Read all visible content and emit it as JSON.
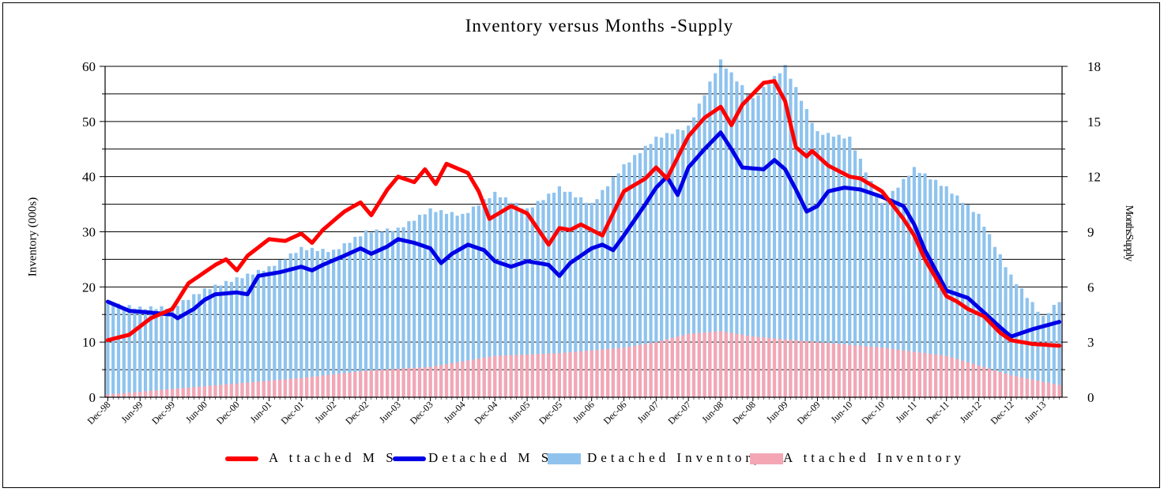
{
  "chart_data": {
    "type": "bar+line",
    "title": "Inventory versus Months -Supply",
    "ylabel_left": "Inventory (000s)",
    "ylabel_right": "MonthsSupply",
    "ylim_left": [
      0,
      60
    ],
    "ylim_right": [
      0,
      18
    ],
    "yticks_left": [
      "0",
      "10",
      "20",
      "30",
      "40",
      "50",
      "60"
    ],
    "yticks_right": [
      "0",
      "3",
      "6",
      "9",
      "12",
      "15",
      "18"
    ],
    "x_tick_labels": [
      "Dec-98",
      "Jun-99",
      "Dec-99",
      "Jun-00",
      "Dec-00",
      "Jun-01",
      "Dec-01",
      "Jun-02",
      "Dec-02",
      "Jun-03",
      "Dec-03",
      "Jun-04",
      "Dec-04",
      "Jun-05",
      "Dec-05",
      "Jun-06",
      "Dec-06",
      "Jun-07",
      "Dec-07",
      "Jun-08",
      "Dec-08",
      "Jun-09",
      "Dec-09",
      "Jun-10",
      "Dec-10",
      "Jun-11",
      "Dec-11",
      "Jun-12",
      "Dec-12",
      "Jun-13"
    ],
    "months_count": 178,
    "series": [
      {
        "name": "Detached Inventory",
        "axis": "left",
        "kind": "bar",
        "color": "#8fc3ee",
        "anchors": [
          [
            0,
            17
          ],
          [
            6,
            16.2
          ],
          [
            12,
            16.3
          ],
          [
            18,
            19.5
          ],
          [
            24,
            21.5
          ],
          [
            30,
            23.5
          ],
          [
            36,
            27
          ],
          [
            42,
            26.5
          ],
          [
            48,
            30
          ],
          [
            54,
            30.5
          ],
          [
            60,
            34
          ],
          [
            66,
            33
          ],
          [
            72,
            37
          ],
          [
            78,
            34
          ],
          [
            84,
            38
          ],
          [
            90,
            35
          ],
          [
            96,
            42
          ],
          [
            102,
            47
          ],
          [
            108,
            49
          ],
          [
            114,
            61
          ],
          [
            120,
            54
          ],
          [
            126,
            60
          ],
          [
            132,
            48
          ],
          [
            138,
            47
          ],
          [
            144,
            35
          ],
          [
            150,
            41.5
          ],
          [
            156,
            38
          ],
          [
            162,
            33
          ],
          [
            168,
            22
          ],
          [
            174,
            14.5
          ],
          [
            177,
            17.5
          ]
        ]
      },
      {
        "name": "Attached Inventory",
        "axis": "left",
        "kind": "bar",
        "color": "#f4a6b4",
        "anchors": [
          [
            0,
            0.5
          ],
          [
            12,
            1.5
          ],
          [
            24,
            2.5
          ],
          [
            36,
            3.5
          ],
          [
            48,
            4.8
          ],
          [
            60,
            5.5
          ],
          [
            72,
            7.5
          ],
          [
            84,
            8
          ],
          [
            96,
            9
          ],
          [
            102,
            10
          ],
          [
            108,
            11.5
          ],
          [
            114,
            12
          ],
          [
            120,
            11
          ],
          [
            132,
            10
          ],
          [
            144,
            9
          ],
          [
            156,
            7.5
          ],
          [
            168,
            4
          ],
          [
            177,
            2.2
          ]
        ]
      },
      {
        "name": "Attached MS",
        "axis": "right",
        "kind": "line",
        "color": "#ff0000",
        "anchors": [
          [
            0,
            3.1
          ],
          [
            4,
            3.4
          ],
          [
            8,
            4.3
          ],
          [
            12,
            4.8
          ],
          [
            15,
            6.2
          ],
          [
            18,
            6.8
          ],
          [
            20,
            7.2
          ],
          [
            22,
            7.5
          ],
          [
            24,
            6.9
          ],
          [
            26,
            7.7
          ],
          [
            30,
            8.6
          ],
          [
            33,
            8.5
          ],
          [
            36,
            8.9
          ],
          [
            38,
            8.4
          ],
          [
            40,
            9.1
          ],
          [
            44,
            10.1
          ],
          [
            47,
            10.6
          ],
          [
            49,
            9.9
          ],
          [
            52,
            11.3
          ],
          [
            54,
            12
          ],
          [
            57,
            11.7
          ],
          [
            59,
            12.4
          ],
          [
            61,
            11.6
          ],
          [
            63,
            12.7
          ],
          [
            67,
            12.2
          ],
          [
            69,
            11.2
          ],
          [
            71,
            9.7
          ],
          [
            75,
            10.4
          ],
          [
            78,
            10
          ],
          [
            82,
            8.3
          ],
          [
            84,
            9.2
          ],
          [
            86,
            9.1
          ],
          [
            88,
            9.4
          ],
          [
            90,
            9.1
          ],
          [
            92,
            8.8
          ],
          [
            96,
            11.2
          ],
          [
            100,
            11.9
          ],
          [
            102,
            12.5
          ],
          [
            104,
            11.9
          ],
          [
            108,
            14.2
          ],
          [
            111,
            15.2
          ],
          [
            114,
            15.8
          ],
          [
            116,
            14.8
          ],
          [
            118,
            15.9
          ],
          [
            122,
            17.1
          ],
          [
            124,
            17.2
          ],
          [
            126,
            16.1
          ],
          [
            128,
            13.6
          ],
          [
            130,
            13.1
          ],
          [
            131,
            13.4
          ],
          [
            134,
            12.6
          ],
          [
            138,
            12
          ],
          [
            140,
            11.9
          ],
          [
            144,
            11.2
          ],
          [
            148,
            9.7
          ],
          [
            150,
            8.8
          ],
          [
            152,
            7.5
          ],
          [
            156,
            5.5
          ],
          [
            158,
            5.2
          ],
          [
            160,
            4.8
          ],
          [
            163,
            4.4
          ],
          [
            166,
            3.5
          ],
          [
            168,
            3.1
          ],
          [
            172,
            2.9
          ],
          [
            177,
            2.8
          ]
        ]
      },
      {
        "name": "Detached MS",
        "axis": "right",
        "kind": "line",
        "color": "#0000e6",
        "anchors": [
          [
            0,
            5.2
          ],
          [
            4,
            4.7
          ],
          [
            8,
            4.6
          ],
          [
            12,
            4.5
          ],
          [
            13,
            4.3
          ],
          [
            16,
            4.8
          ],
          [
            18,
            5.3
          ],
          [
            20,
            5.6
          ],
          [
            24,
            5.7
          ],
          [
            26,
            5.6
          ],
          [
            28,
            6.6
          ],
          [
            32,
            6.8
          ],
          [
            36,
            7.1
          ],
          [
            38,
            6.9
          ],
          [
            40,
            7.2
          ],
          [
            44,
            7.7
          ],
          [
            47,
            8.1
          ],
          [
            49,
            7.8
          ],
          [
            52,
            8.2
          ],
          [
            54,
            8.6
          ],
          [
            57,
            8.4
          ],
          [
            60,
            8.1
          ],
          [
            62,
            7.3
          ],
          [
            64,
            7.8
          ],
          [
            67,
            8.3
          ],
          [
            70,
            8
          ],
          [
            72,
            7.4
          ],
          [
            75,
            7.1
          ],
          [
            78,
            7.4
          ],
          [
            82,
            7.2
          ],
          [
            84,
            6.6
          ],
          [
            86,
            7.3
          ],
          [
            88,
            7.7
          ],
          [
            90,
            8.1
          ],
          [
            92,
            8.3
          ],
          [
            94,
            8
          ],
          [
            96,
            8.8
          ],
          [
            100,
            10.5
          ],
          [
            102,
            11.4
          ],
          [
            104,
            12
          ],
          [
            106,
            11
          ],
          [
            108,
            12.5
          ],
          [
            111,
            13.5
          ],
          [
            114,
            14.4
          ],
          [
            116,
            13.5
          ],
          [
            118,
            12.5
          ],
          [
            122,
            12.4
          ],
          [
            124,
            12.9
          ],
          [
            126,
            12.4
          ],
          [
            128,
            11.3
          ],
          [
            130,
            10.1
          ],
          [
            132,
            10.4
          ],
          [
            134,
            11.2
          ],
          [
            137,
            11.4
          ],
          [
            140,
            11.3
          ],
          [
            144,
            10.9
          ],
          [
            148,
            10.4
          ],
          [
            150,
            9.4
          ],
          [
            152,
            8
          ],
          [
            156,
            5.8
          ],
          [
            158,
            5.6
          ],
          [
            160,
            5.4
          ],
          [
            163,
            4.6
          ],
          [
            166,
            3.8
          ],
          [
            168,
            3.3
          ],
          [
            172,
            3.7
          ],
          [
            177,
            4.1
          ]
        ]
      }
    ],
    "legend": [
      {
        "label": "A ttached M S",
        "color": "#ff0000",
        "kind": "line"
      },
      {
        "label": "Detached M S",
        "color": "#0000e6",
        "kind": "line"
      },
      {
        "label": "Detached Inventory",
        "color": "#8fc3ee",
        "kind": "bar"
      },
      {
        "label": "A ttached Inventory",
        "color": "#f4a6b4",
        "kind": "bar"
      }
    ],
    "legend_position": "bottom",
    "grid": true
  }
}
